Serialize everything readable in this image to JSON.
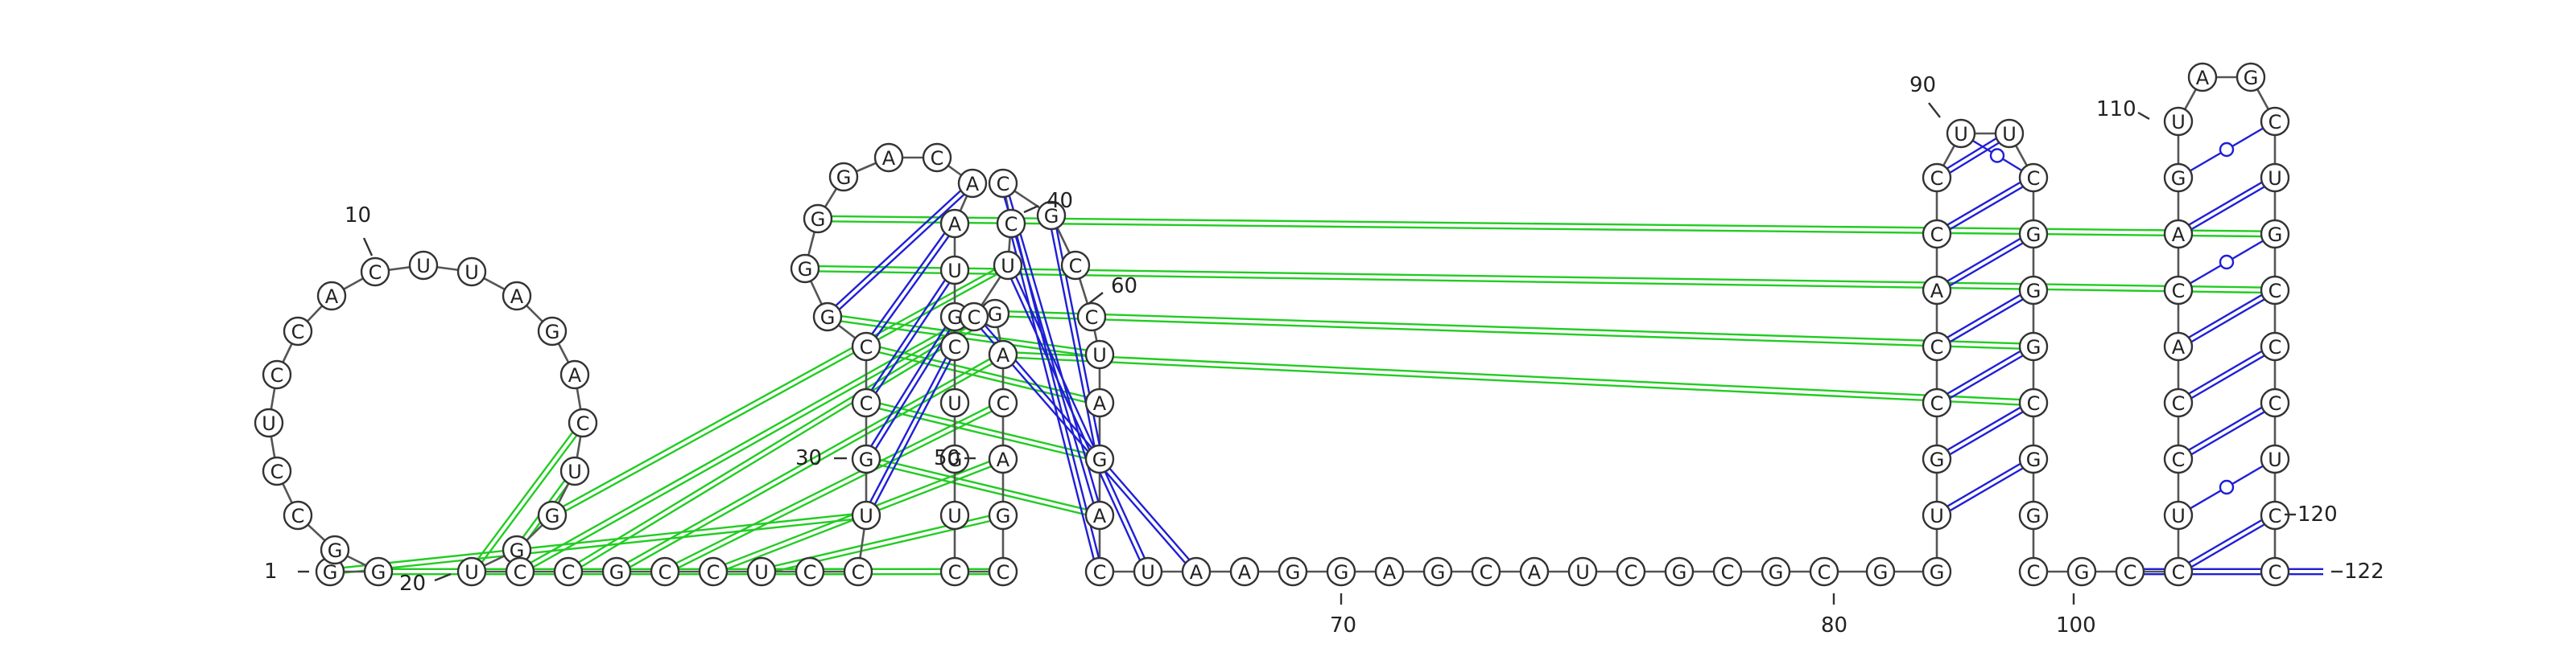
{
  "sequence": [
    "G",
    "G",
    "G",
    "C",
    "C",
    "U",
    "C",
    "C",
    "A",
    "C",
    "U",
    "U",
    "A",
    "G",
    "A",
    "C",
    "U",
    "G",
    "G",
    "U",
    "C",
    "C",
    "G",
    "C",
    "C",
    "U",
    "C",
    "C",
    "U",
    "G",
    "C",
    "C",
    "G",
    "G",
    "G",
    "G",
    "A",
    "C",
    "A",
    "A",
    "U",
    "G",
    "C",
    "U",
    "G",
    "U",
    "C",
    "C",
    "G",
    "A",
    "C",
    "A",
    "G",
    "C",
    "U",
    "C",
    "C",
    "G",
    "C",
    "C",
    "U",
    "A",
    "G",
    "A",
    "C",
    "U",
    "A",
    "A",
    "G",
    "G",
    "A",
    "G",
    "C",
    "A",
    "U",
    "C",
    "G",
    "C",
    "G",
    "C",
    "G",
    "G",
    "U",
    "G",
    "C",
    "C",
    "A",
    "C",
    "C",
    "U",
    "U",
    "C",
    "G",
    "G",
    "G",
    "C",
    "G",
    "G",
    "C",
    "G",
    "C",
    "C",
    "U",
    "C",
    "C",
    "A",
    "C",
    "A",
    "G",
    "U",
    "A",
    "G",
    "C",
    "U",
    "G",
    "C",
    "C",
    "C",
    "U",
    "C",
    "C"
  ],
  "position_labels": {
    "n1": "1",
    "n10": "10",
    "n20": "20",
    "n30": "30",
    "n40": "40",
    "n50": "50",
    "n60": "60",
    "n70": "70",
    "n80": "80",
    "n90": "90",
    "n100": "100",
    "n110": "110",
    "n120": "120",
    "n122": "122"
  },
  "base_pairs": [
    {
      "i": 21,
      "j": 54,
      "type": "pseudoknot"
    },
    {
      "i": 22,
      "j": 53,
      "type": "pseudoknot"
    },
    {
      "i": 23,
      "j": 52,
      "type": "pseudoknot"
    },
    {
      "i": 24,
      "j": 51,
      "type": "pseudoknot"
    },
    {
      "i": 25,
      "j": 50,
      "type": "pseudoknot"
    },
    {
      "i": 26,
      "j": 49,
      "type": "pseudoknot"
    },
    {
      "i": 27,
      "j": 48,
      "type": "pseudoknot"
    },
    {
      "i": 28,
      "j": 2,
      "type": "pseudoknot"
    },
    {
      "i": 29,
      "j": 1,
      "type": "pseudoknot"
    },
    {
      "i": 30,
      "j": 64,
      "type": "pseudoknot"
    },
    {
      "i": 31,
      "j": 63,
      "type": "pseudoknot"
    },
    {
      "i": 32,
      "j": 62,
      "type": "pseudoknot"
    },
    {
      "i": 33,
      "j": 61,
      "type": "pseudoknot"
    },
    {
      "i": 34,
      "j": 116,
      "type": "pseudoknot"
    },
    {
      "i": 35,
      "j": 115,
      "type": "pseudoknot"
    },
    {
      "i": 52,
      "j": 96,
      "type": "pseudoknot"
    },
    {
      "i": 53,
      "j": 95,
      "type": "pseudoknot"
    },
    {
      "i": 18,
      "j": 55,
      "type": "pseudoknot"
    },
    {
      "i": 19,
      "j": 17,
      "type": "pseudoknot"
    },
    {
      "i": 20,
      "j": 16,
      "type": "pseudoknot"
    },
    {
      "i": 29,
      "j": 43,
      "type": "canonical"
    },
    {
      "i": 30,
      "j": 42,
      "type": "canonical"
    },
    {
      "i": 31,
      "j": 41,
      "type": "canonical"
    },
    {
      "i": 32,
      "j": 40,
      "type": "canonical"
    },
    {
      "i": 33,
      "j": 39,
      "type": "canonical"
    },
    {
      "i": 54,
      "j": 67,
      "type": "canonical"
    },
    {
      "i": 55,
      "j": 66,
      "type": "canonical"
    },
    {
      "i": 56,
      "j": 65,
      "type": "canonical"
    },
    {
      "i": 57,
      "j": 64,
      "type": "canonical"
    },
    {
      "i": 58,
      "j": 63,
      "type": "canonical"
    },
    {
      "i": 83,
      "j": 97,
      "type": "canonical"
    },
    {
      "i": 84,
      "j": 96,
      "type": "canonical"
    },
    {
      "i": 85,
      "j": 95,
      "type": "canonical"
    },
    {
      "i": 86,
      "j": 94,
      "type": "canonical"
    },
    {
      "i": 87,
      "j": 93,
      "type": "canonical"
    },
    {
      "i": 88,
      "j": 92,
      "type": "canonical"
    },
    {
      "i": 89,
      "j": 91,
      "type": "canonical"
    },
    {
      "i": 90,
      "j": 92,
      "type": "wobble"
    },
    {
      "i": 101,
      "j": 122,
      "type": "canonical"
    },
    {
      "i": 102,
      "j": 120,
      "type": "canonical"
    },
    {
      "i": 103,
      "j": 119,
      "type": "wobble"
    },
    {
      "i": 104,
      "j": 118,
      "type": "canonical"
    },
    {
      "i": 105,
      "j": 117,
      "type": "canonical"
    },
    {
      "i": 106,
      "j": 116,
      "type": "canonical"
    },
    {
      "i": 107,
      "j": 115,
      "type": "wobble"
    },
    {
      "i": 108,
      "j": 114,
      "type": "canonical"
    },
    {
      "i": 109,
      "j": 113,
      "type": "wobble"
    }
  ]
}
